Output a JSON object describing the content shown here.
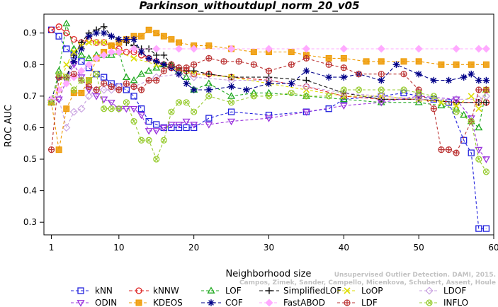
{
  "chart_data": {
    "type": "line",
    "title": "Parkinson_withoutdupl_norm_20_v05",
    "xlabel": "Neighborhood size",
    "ylabel": "ROC AUC",
    "xlim": [
      0,
      60
    ],
    "ylim": [
      0.26,
      0.96
    ],
    "xticks": [
      1,
      10,
      20,
      30,
      40,
      50,
      60
    ],
    "yticks": [
      0.3,
      0.4,
      0.5,
      0.6,
      0.7,
      0.8,
      0.9
    ],
    "grid": false,
    "legend_placement": "bottom",
    "watermark": {
      "line1": "Unsupervised Outlier Detection. DAMI, 2015.",
      "line2": "Campos, Zimek, Sander, Campello, Micenkova, Schubert, Assent, Houle"
    },
    "series": [
      {
        "name": "kNN",
        "color": "#2222dd",
        "marker": "square",
        "dash": "4,3",
        "x": [
          1,
          2,
          3,
          4,
          5,
          6,
          7,
          8,
          9,
          10,
          11,
          12,
          13,
          14,
          15,
          16,
          17,
          18,
          19,
          20,
          22,
          25,
          30,
          35,
          38,
          40,
          45,
          48,
          50,
          52,
          54,
          56,
          57,
          58,
          59
        ],
        "y": [
          0.91,
          0.89,
          0.85,
          0.83,
          0.81,
          0.79,
          0.77,
          0.76,
          0.74,
          0.73,
          0.72,
          0.7,
          0.66,
          0.62,
          0.61,
          0.6,
          0.6,
          0.6,
          0.6,
          0.6,
          0.63,
          0.65,
          0.64,
          0.65,
          0.66,
          0.69,
          0.7,
          0.71,
          0.7,
          0.69,
          0.68,
          0.56,
          0.52,
          0.28,
          0.28
        ]
      },
      {
        "name": "kNNW",
        "color": "#dd2222",
        "marker": "circle",
        "dash": "5,3",
        "x": [
          1,
          2,
          3,
          4,
          5,
          6,
          7,
          8,
          9,
          10,
          11,
          12,
          13,
          14,
          15,
          16,
          17,
          18,
          19,
          20,
          22,
          25,
          30,
          35,
          40,
          45,
          50,
          55,
          58,
          59
        ],
        "y": [
          0.91,
          0.92,
          0.9,
          0.88,
          0.87,
          0.88,
          0.87,
          0.87,
          0.86,
          0.85,
          0.84,
          0.84,
          0.83,
          0.82,
          0.81,
          0.8,
          0.79,
          0.78,
          0.78,
          0.77,
          0.77,
          0.76,
          0.75,
          0.73,
          0.7,
          0.69,
          0.69,
          0.68,
          0.68,
          0.68
        ]
      },
      {
        "name": "LOF",
        "color": "#22aa22",
        "marker": "triangle-up",
        "dash": "4,3",
        "x": [
          1,
          2,
          3,
          4,
          5,
          6,
          7,
          8,
          9,
          10,
          11,
          12,
          13,
          14,
          15,
          16,
          17,
          18,
          19,
          20,
          22,
          25,
          28,
          30,
          35,
          40,
          45,
          50,
          53,
          55,
          56,
          57,
          58,
          59
        ],
        "y": [
          0.68,
          0.78,
          0.93,
          0.85,
          0.83,
          0.82,
          0.83,
          0.83,
          0.83,
          0.84,
          0.76,
          0.75,
          0.77,
          0.78,
          0.79,
          0.8,
          0.8,
          0.78,
          0.76,
          0.72,
          0.74,
          0.7,
          0.71,
          0.71,
          0.7,
          0.69,
          0.68,
          0.68,
          0.67,
          0.66,
          0.64,
          0.62,
          0.6,
          0.72
        ]
      },
      {
        "name": "SimplifiedLOF",
        "color": "#111111",
        "marker": "plus",
        "dash": "5,3",
        "x": [
          1,
          2,
          3,
          4,
          5,
          6,
          7,
          8,
          9,
          10,
          11,
          12,
          13,
          14,
          15,
          16,
          17,
          18,
          19,
          20,
          22,
          25,
          30,
          35,
          40,
          45,
          50,
          55,
          58,
          59
        ],
        "y": [
          0.69,
          0.76,
          0.76,
          0.83,
          0.87,
          0.9,
          0.91,
          0.92,
          0.89,
          0.88,
          0.87,
          0.86,
          0.85,
          0.85,
          0.83,
          0.83,
          0.8,
          0.79,
          0.78,
          0.78,
          0.77,
          0.76,
          0.76,
          0.75,
          0.71,
          0.69,
          0.69,
          0.68,
          0.68,
          0.68
        ]
      },
      {
        "name": "LoOP",
        "color": "#dddd00",
        "marker": "x",
        "dash": "4,3",
        "x": [
          1,
          2,
          3,
          4,
          5,
          6,
          7,
          8,
          9,
          10,
          12,
          15,
          20,
          25,
          30,
          35,
          40,
          45,
          50,
          53,
          55,
          57,
          58,
          59
        ],
        "y": [
          0.68,
          0.72,
          0.8,
          0.84,
          0.86,
          0.87,
          0.87,
          0.87,
          0.86,
          0.84,
          0.82,
          0.8,
          0.77,
          0.76,
          0.74,
          0.72,
          0.7,
          0.7,
          0.69,
          0.68,
          0.67,
          0.7,
          0.66,
          0.72
        ]
      },
      {
        "name": "LDOF",
        "color": "#c8a0e0",
        "marker": "diamond",
        "dash": "4,3",
        "x": [
          1,
          2,
          3,
          4,
          5,
          6,
          7,
          8,
          9,
          10,
          12,
          15,
          18,
          20,
          25,
          30,
          35,
          40,
          45,
          50,
          55,
          58,
          59
        ],
        "y": [
          0.68,
          0.69,
          0.6,
          0.65,
          0.66,
          0.7,
          0.72,
          0.72,
          0.72,
          0.73,
          0.73,
          0.76,
          0.77,
          0.76,
          0.75,
          0.75,
          0.73,
          0.71,
          0.7,
          0.69,
          0.69,
          0.69,
          0.7
        ]
      },
      {
        "name": "ODIN",
        "color": "#9a33dd",
        "marker": "triangle-down",
        "dash": "4,3",
        "x": [
          1,
          2,
          3,
          4,
          5,
          6,
          7,
          8,
          9,
          10,
          11,
          12,
          13,
          14,
          15,
          16,
          17,
          18,
          19,
          20,
          22,
          25,
          30,
          35,
          40,
          45,
          50,
          55,
          57,
          58,
          59
        ],
        "y": [
          0.68,
          0.69,
          0.75,
          0.8,
          0.76,
          0.72,
          0.7,
          0.69,
          0.68,
          0.66,
          0.66,
          0.66,
          0.64,
          0.59,
          0.59,
          0.6,
          0.61,
          0.61,
          0.62,
          0.61,
          0.61,
          0.62,
          0.63,
          0.65,
          0.67,
          0.68,
          0.7,
          0.69,
          0.63,
          0.53,
          0.5
        ]
      },
      {
        "name": "KDEOS",
        "color": "#ee9900",
        "marker": "square-filled",
        "dash": "4,3",
        "x": [
          1,
          2,
          3,
          4,
          5,
          6,
          7,
          8,
          9,
          10,
          11,
          12,
          13,
          14,
          15,
          16,
          17,
          18,
          20,
          22,
          25,
          28,
          30,
          33,
          35,
          38,
          40,
          43,
          45,
          48,
          50,
          53,
          55,
          57,
          59
        ],
        "y": [
          0.68,
          0.53,
          0.66,
          0.71,
          0.71,
          0.75,
          0.82,
          0.84,
          0.86,
          0.87,
          0.88,
          0.89,
          0.89,
          0.91,
          0.9,
          0.89,
          0.88,
          0.87,
          0.86,
          0.86,
          0.85,
          0.84,
          0.84,
          0.84,
          0.83,
          0.82,
          0.82,
          0.81,
          0.81,
          0.81,
          0.81,
          0.8,
          0.8,
          0.8,
          0.8
        ]
      },
      {
        "name": "COF",
        "color": "#000088",
        "marker": "asterisk",
        "dash": "5,3",
        "x": [
          1,
          2,
          3,
          4,
          5,
          6,
          7,
          8,
          9,
          10,
          11,
          12,
          13,
          14,
          15,
          16,
          17,
          18,
          19,
          20,
          22,
          25,
          27,
          30,
          33,
          35,
          38,
          40,
          42,
          45,
          47,
          50,
          52,
          54,
          56,
          57,
          58,
          59
        ],
        "y": [
          0.69,
          0.76,
          0.76,
          0.81,
          0.85,
          0.89,
          0.9,
          0.9,
          0.89,
          0.88,
          0.88,
          0.88,
          0.84,
          0.82,
          0.81,
          0.8,
          0.79,
          0.77,
          0.74,
          0.72,
          0.72,
          0.73,
          0.72,
          0.74,
          0.74,
          0.78,
          0.76,
          0.76,
          0.77,
          0.75,
          0.8,
          0.77,
          0.75,
          0.75,
          0.76,
          0.77,
          0.75,
          0.75
        ]
      },
      {
        "name": "FastABOD",
        "color": "#ffaaff",
        "marker": "diamond-filled",
        "dash": "4,3",
        "x": [
          1,
          2,
          3,
          4,
          5,
          6,
          7,
          8,
          9,
          10,
          12,
          15,
          18,
          20,
          25,
          30,
          35,
          40,
          45,
          50,
          55,
          58,
          59
        ],
        "y": [
          0.69,
          0.72,
          0.74,
          0.76,
          0.78,
          0.8,
          0.82,
          0.83,
          0.84,
          0.84,
          0.85,
          0.85,
          0.85,
          0.85,
          0.85,
          0.85,
          0.85,
          0.85,
          0.85,
          0.85,
          0.85,
          0.85,
          0.85
        ]
      },
      {
        "name": "LDF",
        "color": "#bb3333",
        "marker": "circle-plus",
        "dash": "4,3",
        "x": [
          1,
          2,
          3,
          4,
          5,
          6,
          7,
          8,
          9,
          10,
          11,
          12,
          13,
          14,
          15,
          16,
          17,
          18,
          19,
          20,
          22,
          24,
          26,
          28,
          30,
          33,
          35,
          38,
          40,
          42,
          45,
          48,
          50,
          52,
          53,
          54,
          55,
          57,
          58,
          59
        ],
        "y": [
          0.53,
          0.76,
          0.76,
          0.77,
          0.75,
          0.73,
          0.72,
          0.74,
          0.73,
          0.72,
          0.74,
          0.73,
          0.72,
          0.75,
          0.75,
          0.78,
          0.8,
          0.79,
          0.79,
          0.8,
          0.82,
          0.81,
          0.81,
          0.8,
          0.78,
          0.8,
          0.82,
          0.8,
          0.79,
          0.77,
          0.77,
          0.77,
          0.72,
          0.66,
          0.53,
          0.53,
          0.52,
          0.62,
          0.72,
          0.72
        ]
      },
      {
        "name": "INFLO",
        "color": "#99cc33",
        "marker": "circle-x",
        "dash": "4,3",
        "x": [
          1,
          2,
          3,
          4,
          5,
          6,
          7,
          8,
          9,
          10,
          11,
          12,
          13,
          14,
          15,
          16,
          17,
          18,
          19,
          20,
          22,
          25,
          28,
          30,
          33,
          35,
          38,
          40,
          42,
          45,
          48,
          50,
          52,
          55,
          57,
          58,
          59
        ],
        "y": [
          0.68,
          0.77,
          0.76,
          0.72,
          0.75,
          0.75,
          0.77,
          0.66,
          0.66,
          0.66,
          0.68,
          0.62,
          0.56,
          0.56,
          0.5,
          0.56,
          0.65,
          0.68,
          0.68,
          0.65,
          0.7,
          0.68,
          0.7,
          0.7,
          0.71,
          0.7,
          0.7,
          0.72,
          0.72,
          0.72,
          0.72,
          0.71,
          0.7,
          0.65,
          0.62,
          0.5,
          0.46
        ]
      }
    ]
  }
}
